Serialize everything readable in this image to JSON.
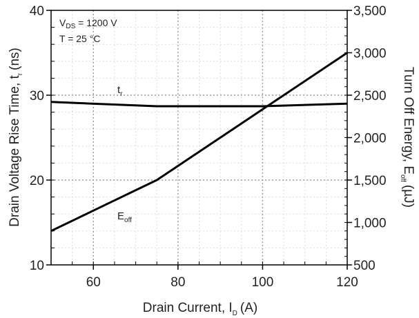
{
  "chart_data": {
    "type": "line",
    "xlabel": "Drain Current, I",
    "xlabel_sub": "D",
    "xlabel_unit": "(A)",
    "ylabel_left": "Drain Voltage Rise Time, t",
    "ylabel_left_sub": "r",
    "ylabel_left_unit": "(ns)",
    "ylabel_right": "Turn Off Energy, E",
    "ylabel_right_sub": "off",
    "ylabel_right_unit": "(µJ)",
    "xlim": [
      50,
      120
    ],
    "ylim_left": [
      10,
      40
    ],
    "ylim_right": [
      500,
      3500
    ],
    "x_ticks": [
      "60",
      "80",
      "100",
      "120"
    ],
    "y_left_ticks": [
      "10",
      "20",
      "30",
      "40"
    ],
    "y_right_ticks": [
      "500",
      "1,000",
      "1,500",
      "2,000",
      "2,500",
      "3,000",
      "3,500"
    ],
    "grid": true,
    "conditions": {
      "vds_prefix": "V",
      "vds_sub": "DS",
      "vds_value": " = 1200 V",
      "temp": "T = 25 °C"
    },
    "series": [
      {
        "name": "t",
        "name_sub": "r",
        "axis": "left",
        "x": [
          50,
          75,
          80,
          100,
          120
        ],
        "values": [
          29.2,
          28.7,
          28.7,
          28.7,
          29.0
        ]
      },
      {
        "name": "E",
        "name_sub": "off",
        "axis": "right",
        "x": [
          50,
          75,
          120
        ],
        "values": [
          900,
          1500,
          3000
        ]
      }
    ]
  }
}
